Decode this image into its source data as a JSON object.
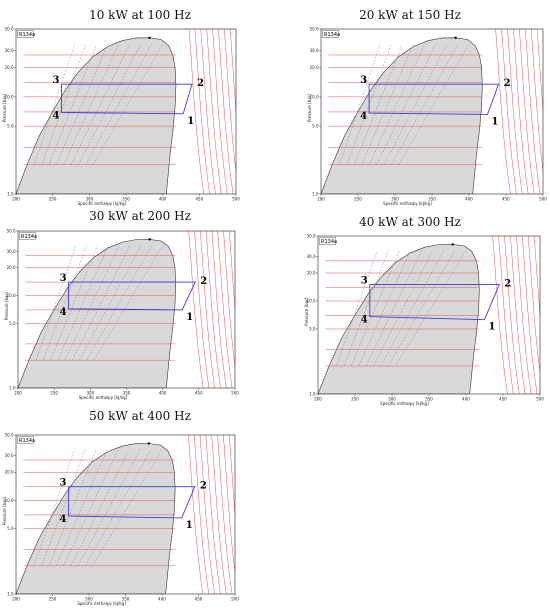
{
  "figure": {
    "refrigerant_label": "R134a",
    "xlabel": "Specific enthalpy [kJ/kg]",
    "ylabel": "Pressure [bar]"
  },
  "chart_data": [
    {
      "type": "line",
      "title": "10 kW at 100 Hz",
      "xlabel": "Specific enthalpy [kJ/kg]",
      "ylabel": "Pressure [bar]",
      "xlim": [
        200,
        500
      ],
      "ylim": [
        1,
        50
      ],
      "yscale": "log",
      "x_ticks": [
        200,
        250,
        300,
        350,
        400,
        450,
        500
      ],
      "y_ticks": [
        1.0,
        5.0,
        10.0,
        20.0,
        30.0,
        50.0
      ],
      "y_tick_labels": [
        "1.0",
        "5.0",
        "10.0",
        "20.0",
        "30.0",
        "50.0"
      ],
      "x_tick_labels": [
        "200",
        "250",
        "300",
        "350",
        "400",
        "450",
        "500"
      ],
      "cycle": [
        {
          "label": "1",
          "h": 428,
          "p": 6.7
        },
        {
          "label": "2",
          "h": 440,
          "p": 13.5
        },
        {
          "label": "3",
          "h": 262,
          "p": 13.5
        },
        {
          "label": "4",
          "h": 262,
          "p": 6.9
        }
      ]
    },
    {
      "type": "line",
      "title": "20 kW at 150 Hz",
      "xlabel": "Specific enthalpy [kJ/kg]",
      "ylabel": "Pressure [bar]",
      "xlim": [
        200,
        500
      ],
      "ylim": [
        1,
        50
      ],
      "yscale": "log",
      "x_ticks": [
        200,
        250,
        300,
        350,
        400,
        450,
        500
      ],
      "y_ticks": [
        1.0,
        5.0,
        10.0,
        20.0,
        30.0,
        50.0
      ],
      "y_tick_labels": [
        "1.0",
        "5.0",
        "10.0",
        "20.0",
        "30.0",
        "50.0"
      ],
      "x_tick_labels": [
        "200",
        "250",
        "300",
        "350",
        "400",
        "450",
        "500"
      ],
      "cycle": [
        {
          "label": "1",
          "h": 425,
          "p": 6.6
        },
        {
          "label": "2",
          "h": 440,
          "p": 13.5
        },
        {
          "label": "3",
          "h": 265,
          "p": 13.5
        },
        {
          "label": "4",
          "h": 265,
          "p": 6.8
        }
      ]
    },
    {
      "type": "line",
      "title": "30 kW at 200 Hz",
      "xlabel": "Specific enthalpy [kJ/kg]",
      "ylabel": "Pressure [bar]",
      "xlim": [
        200,
        500
      ],
      "ylim": [
        1,
        50
      ],
      "yscale": "log",
      "x_ticks": [
        200,
        250,
        300,
        350,
        400,
        450,
        500
      ],
      "y_ticks": [
        1.0,
        5.0,
        10.0,
        20.0,
        30.0,
        50.0
      ],
      "y_tick_labels": [
        "1.0",
        "5.0",
        "10.0",
        "20.0",
        "30.0",
        "50.0"
      ],
      "x_tick_labels": [
        "200",
        "250",
        "300",
        "350",
        "400",
        "450",
        "500"
      ],
      "cycle": [
        {
          "label": "1",
          "h": 427,
          "p": 7.0
        },
        {
          "label": "2",
          "h": 445,
          "p": 14.0
        },
        {
          "label": "3",
          "h": 270,
          "p": 14.0
        },
        {
          "label": "4",
          "h": 270,
          "p": 7.2
        }
      ]
    },
    {
      "type": "line",
      "title": "40 kW at 300 Hz",
      "xlabel": "Specific enthalpy [kJ/kg]",
      "ylabel": "Pressure [bar]",
      "xlim": [
        200,
        500
      ],
      "ylim": [
        1,
        50
      ],
      "yscale": "log",
      "x_ticks": [
        200,
        250,
        300,
        350,
        400,
        450,
        500
      ],
      "y_ticks": [
        1.0,
        5.0,
        10.0,
        20.0,
        30.0,
        50.0
      ],
      "y_tick_labels": [
        "1.0",
        "5.0",
        "10.0",
        "20.0",
        "30.0",
        "50.0"
      ],
      "x_tick_labels": [
        "200",
        "250",
        "300",
        "350",
        "400",
        "450",
        "500"
      ],
      "cycle": [
        {
          "label": "1",
          "h": 425,
          "p": 6.3
        },
        {
          "label": "2",
          "h": 445,
          "p": 15.0
        },
        {
          "label": "3",
          "h": 270,
          "p": 15.0
        },
        {
          "label": "4",
          "h": 270,
          "p": 6.8
        }
      ]
    },
    {
      "type": "line",
      "title": "50 kW at 400 Hz",
      "xlabel": "Specific enthalpy [kJ/kg]",
      "ylabel": "Pressure [bar]",
      "xlim": [
        200,
        500
      ],
      "ylim": [
        1,
        50
      ],
      "yscale": "log",
      "x_ticks": [
        200,
        250,
        300,
        350,
        400,
        450,
        500
      ],
      "y_ticks": [
        1.0,
        5.0,
        10.0,
        20.0,
        30.0,
        50.0
      ],
      "y_tick_labels": [
        "1.0",
        "5.0",
        "10.0",
        "20.0",
        "30.0",
        "50.0"
      ],
      "x_tick_labels": [
        "200",
        "250",
        "300",
        "350",
        "400",
        "450",
        "500"
      ],
      "cycle": [
        {
          "label": "1",
          "h": 427,
          "p": 6.5
        },
        {
          "label": "2",
          "h": 445,
          "p": 14.0
        },
        {
          "label": "3",
          "h": 272,
          "p": 14.0
        },
        {
          "label": "4",
          "h": 272,
          "p": 6.8
        }
      ]
    }
  ],
  "colors": {
    "dome_fill": "#d9d9d9",
    "isotherm": "#e2555d",
    "cycle": "#3b3be0",
    "quality_line": "#777777",
    "isentrope": "#3a9a3a",
    "critical_point": "#000000"
  }
}
